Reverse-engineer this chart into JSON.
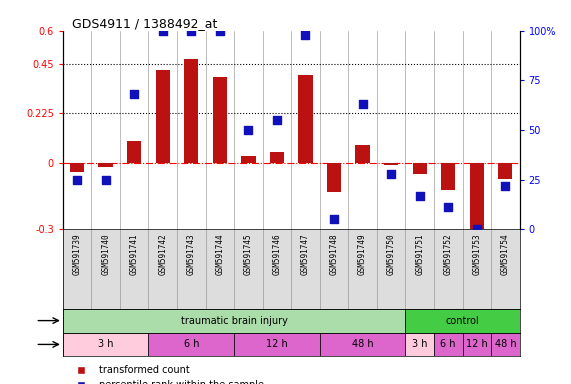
{
  "title": "GDS4911 / 1388492_at",
  "samples": [
    "GSM591739",
    "GSM591740",
    "GSM591741",
    "GSM591742",
    "GSM591743",
    "GSM591744",
    "GSM591745",
    "GSM591746",
    "GSM591747",
    "GSM591748",
    "GSM591749",
    "GSM591750",
    "GSM591751",
    "GSM591752",
    "GSM591753",
    "GSM591754"
  ],
  "red_values": [
    -0.04,
    -0.02,
    0.1,
    0.42,
    0.47,
    0.39,
    0.03,
    0.05,
    0.4,
    -0.13,
    0.08,
    -0.01,
    -0.05,
    -0.12,
    -0.35,
    -0.07
  ],
  "blue_values": [
    25,
    25,
    68,
    100,
    100,
    100,
    50,
    55,
    98,
    5,
    63,
    28,
    17,
    11,
    0,
    22
  ],
  "ylim_left": [
    -0.3,
    0.6
  ],
  "ylim_right": [
    0,
    100
  ],
  "yticks_left": [
    -0.3,
    0.0,
    0.225,
    0.45,
    0.6
  ],
  "yticks_left_labels": [
    "-0.3",
    "0",
    "0.225",
    "0.45",
    "0.6"
  ],
  "yticks_right": [
    0,
    25,
    50,
    75,
    100
  ],
  "yticks_right_labels": [
    "0",
    "25",
    "50",
    "75",
    "100%"
  ],
  "hlines": [
    0.225,
    0.45
  ],
  "shock_groups": [
    {
      "label": "traumatic brain injury",
      "start": 0,
      "end": 12,
      "color": "#aaddaa"
    },
    {
      "label": "control",
      "start": 12,
      "end": 16,
      "color": "#44cc44"
    }
  ],
  "time_groups": [
    {
      "label": "3 h",
      "start": 0,
      "end": 3,
      "color": "#ffccdd"
    },
    {
      "label": "6 h",
      "start": 3,
      "end": 6,
      "color": "#dd66cc"
    },
    {
      "label": "12 h",
      "start": 6,
      "end": 9,
      "color": "#dd66cc"
    },
    {
      "label": "48 h",
      "start": 9,
      "end": 12,
      "color": "#dd66cc"
    },
    {
      "label": "3 h",
      "start": 12,
      "end": 13,
      "color": "#ffccdd"
    },
    {
      "label": "6 h",
      "start": 13,
      "end": 14,
      "color": "#dd66cc"
    },
    {
      "label": "12 h",
      "start": 14,
      "end": 15,
      "color": "#dd66cc"
    },
    {
      "label": "48 h",
      "start": 15,
      "end": 16,
      "color": "#dd66cc"
    }
  ],
  "red_color": "#BB1111",
  "blue_color": "#1111BB",
  "bar_width": 0.5,
  "dot_size": 30,
  "bg_color": "#dddddd"
}
